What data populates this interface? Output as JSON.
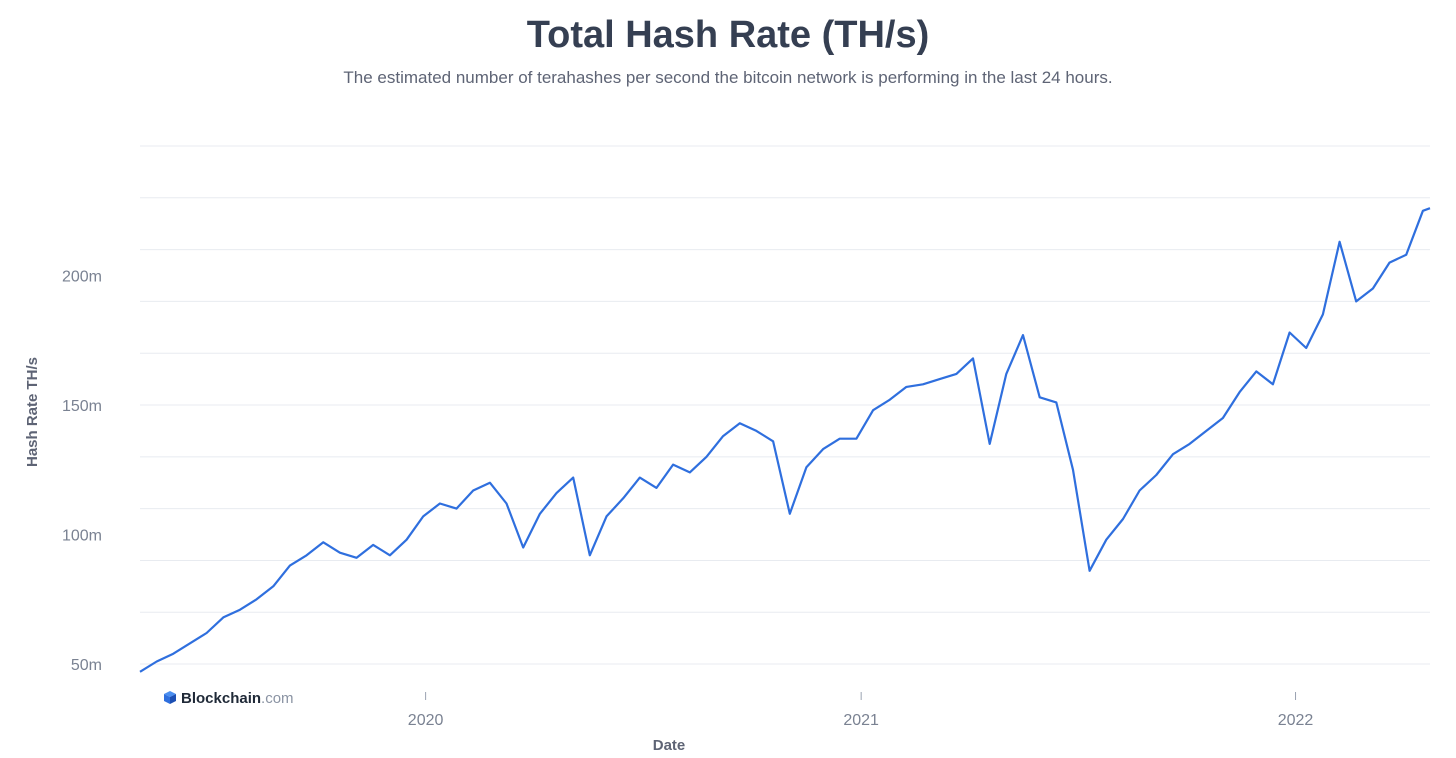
{
  "title": "Total Hash Rate (TH/s)",
  "subtitle": "The estimated number of terahashes per second the bitcoin network is performing in the last 24 hours.",
  "brand": {
    "name": "Blockchain",
    "suffix": ".com"
  },
  "colors": {
    "line": "#2f6fde",
    "grid": "#e8ebf0",
    "title": "#353f52",
    "axis_text": "#7a8292"
  },
  "chart_data": {
    "type": "line",
    "title": "Total Hash Rate (TH/s)",
    "xlabel": "Date",
    "ylabel": "Hash Rate TH/s",
    "ylim": [
      45000000,
      250000000
    ],
    "xlim": [
      "2019-05-06",
      "2022-04-24"
    ],
    "yticks": [
      {
        "value": 50000000,
        "label": "50m"
      },
      {
        "value": 100000000,
        "label": "100m"
      },
      {
        "value": 150000000,
        "label": "150m"
      },
      {
        "value": 200000000,
        "label": "200m"
      }
    ],
    "xticks": [
      {
        "value": "2020-01-01",
        "label": "2020"
      },
      {
        "value": "2021-01-01",
        "label": "2021"
      },
      {
        "value": "2022-01-01",
        "label": "2022"
      }
    ],
    "grid": true,
    "legend": "none",
    "series": [
      {
        "x": [
          "2019-05-06",
          "2019-05-20",
          "2019-06-03",
          "2019-06-17",
          "2019-07-01",
          "2019-07-15",
          "2019-07-29",
          "2019-08-12",
          "2019-08-26",
          "2019-09-09",
          "2019-09-23",
          "2019-10-07",
          "2019-10-21",
          "2019-11-04",
          "2019-11-18",
          "2019-12-02",
          "2019-12-16",
          "2019-12-30",
          "2020-01-13",
          "2020-01-27",
          "2020-02-10",
          "2020-02-24",
          "2020-03-09",
          "2020-03-23",
          "2020-04-06",
          "2020-04-20",
          "2020-05-04",
          "2020-05-18",
          "2020-06-01",
          "2020-06-15",
          "2020-06-29",
          "2020-07-13",
          "2020-07-27",
          "2020-08-10",
          "2020-08-24",
          "2020-09-07",
          "2020-09-21",
          "2020-10-05",
          "2020-10-19",
          "2020-11-02",
          "2020-11-16",
          "2020-11-30",
          "2020-12-14",
          "2020-12-28",
          "2021-01-11",
          "2021-01-25",
          "2021-02-08",
          "2021-02-22",
          "2021-03-08",
          "2021-03-22",
          "2021-04-05",
          "2021-04-19",
          "2021-05-03",
          "2021-05-17",
          "2021-05-31",
          "2021-06-14",
          "2021-06-28",
          "2021-07-12",
          "2021-07-26",
          "2021-08-09",
          "2021-08-23",
          "2021-09-06",
          "2021-09-20",
          "2021-10-04",
          "2021-10-18",
          "2021-11-01",
          "2021-11-15",
          "2021-11-29",
          "2021-12-13",
          "2021-12-27",
          "2022-01-10",
          "2022-01-24",
          "2022-02-07",
          "2022-02-21",
          "2022-03-07",
          "2022-03-21",
          "2022-04-04",
          "2022-04-18",
          "2022-04-24"
        ],
        "y": [
          47,
          51,
          54,
          58,
          62,
          68,
          71,
          75,
          80,
          88,
          92,
          97,
          93,
          91,
          96,
          92,
          98,
          107,
          112,
          110,
          117,
          120,
          112,
          95,
          108,
          116,
          122,
          92,
          107,
          114,
          122,
          118,
          127,
          124,
          130,
          138,
          143,
          140,
          136,
          108,
          126,
          133,
          137,
          137,
          148,
          152,
          157,
          158,
          160,
          162,
          168,
          135,
          162,
          177,
          153,
          151,
          125,
          86,
          98,
          106,
          117,
          123,
          131,
          135,
          140,
          145,
          155,
          163,
          158,
          178,
          172,
          185,
          213,
          190,
          195,
          205,
          208,
          225,
          226
        ]
      }
    ],
    "y_unit_multiplier": 1000000
  }
}
